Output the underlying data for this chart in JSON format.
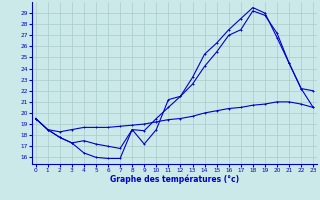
{
  "xlabel": "Graphe des températures (°c)",
  "bg_color": "#cce9e9",
  "grid_color": "#aacccc",
  "line_color": "#0000cc",
  "x_ticks": [
    0,
    1,
    2,
    3,
    4,
    5,
    6,
    7,
    8,
    9,
    10,
    11,
    12,
    13,
    14,
    15,
    16,
    17,
    18,
    19,
    20,
    21,
    22,
    23
  ],
  "y_ticks": [
    16,
    17,
    18,
    19,
    20,
    21,
    22,
    23,
    24,
    25,
    26,
    27,
    28,
    29
  ],
  "xlim": [
    -0.3,
    23.3
  ],
  "ylim": [
    15.4,
    30.0
  ],
  "line1_x": [
    0,
    1,
    2,
    3,
    4,
    5,
    6,
    7,
    8,
    9,
    10,
    11,
    12,
    13,
    14,
    15,
    16,
    17,
    18,
    19,
    20,
    21,
    22,
    23
  ],
  "line1_y": [
    19.5,
    18.5,
    17.8,
    17.3,
    16.4,
    16.0,
    15.9,
    15.9,
    18.5,
    17.2,
    18.5,
    21.2,
    21.5,
    23.2,
    25.3,
    26.3,
    27.5,
    28.5,
    29.5,
    29.0,
    26.8,
    24.5,
    22.2,
    22.0
  ],
  "line2_x": [
    0,
    1,
    2,
    3,
    4,
    5,
    6,
    7,
    8,
    9,
    10,
    11,
    12,
    13,
    14,
    15,
    16,
    17,
    18,
    19,
    20,
    21,
    22,
    23
  ],
  "line2_y": [
    19.5,
    18.5,
    17.8,
    17.3,
    17.5,
    17.2,
    17.0,
    16.8,
    18.5,
    18.4,
    19.5,
    20.5,
    21.5,
    22.6,
    24.2,
    25.5,
    27.0,
    27.5,
    29.2,
    28.8,
    27.2,
    24.5,
    22.2,
    20.5
  ],
  "line3_x": [
    0,
    1,
    2,
    3,
    4,
    5,
    6,
    7,
    8,
    9,
    10,
    11,
    12,
    13,
    14,
    15,
    16,
    17,
    18,
    19,
    20,
    21,
    22,
    23
  ],
  "line3_y": [
    19.5,
    18.5,
    18.3,
    18.5,
    18.7,
    18.7,
    18.7,
    18.8,
    18.9,
    19.0,
    19.2,
    19.4,
    19.5,
    19.7,
    20.0,
    20.2,
    20.4,
    20.5,
    20.7,
    20.8,
    21.0,
    21.0,
    20.8,
    20.5
  ]
}
